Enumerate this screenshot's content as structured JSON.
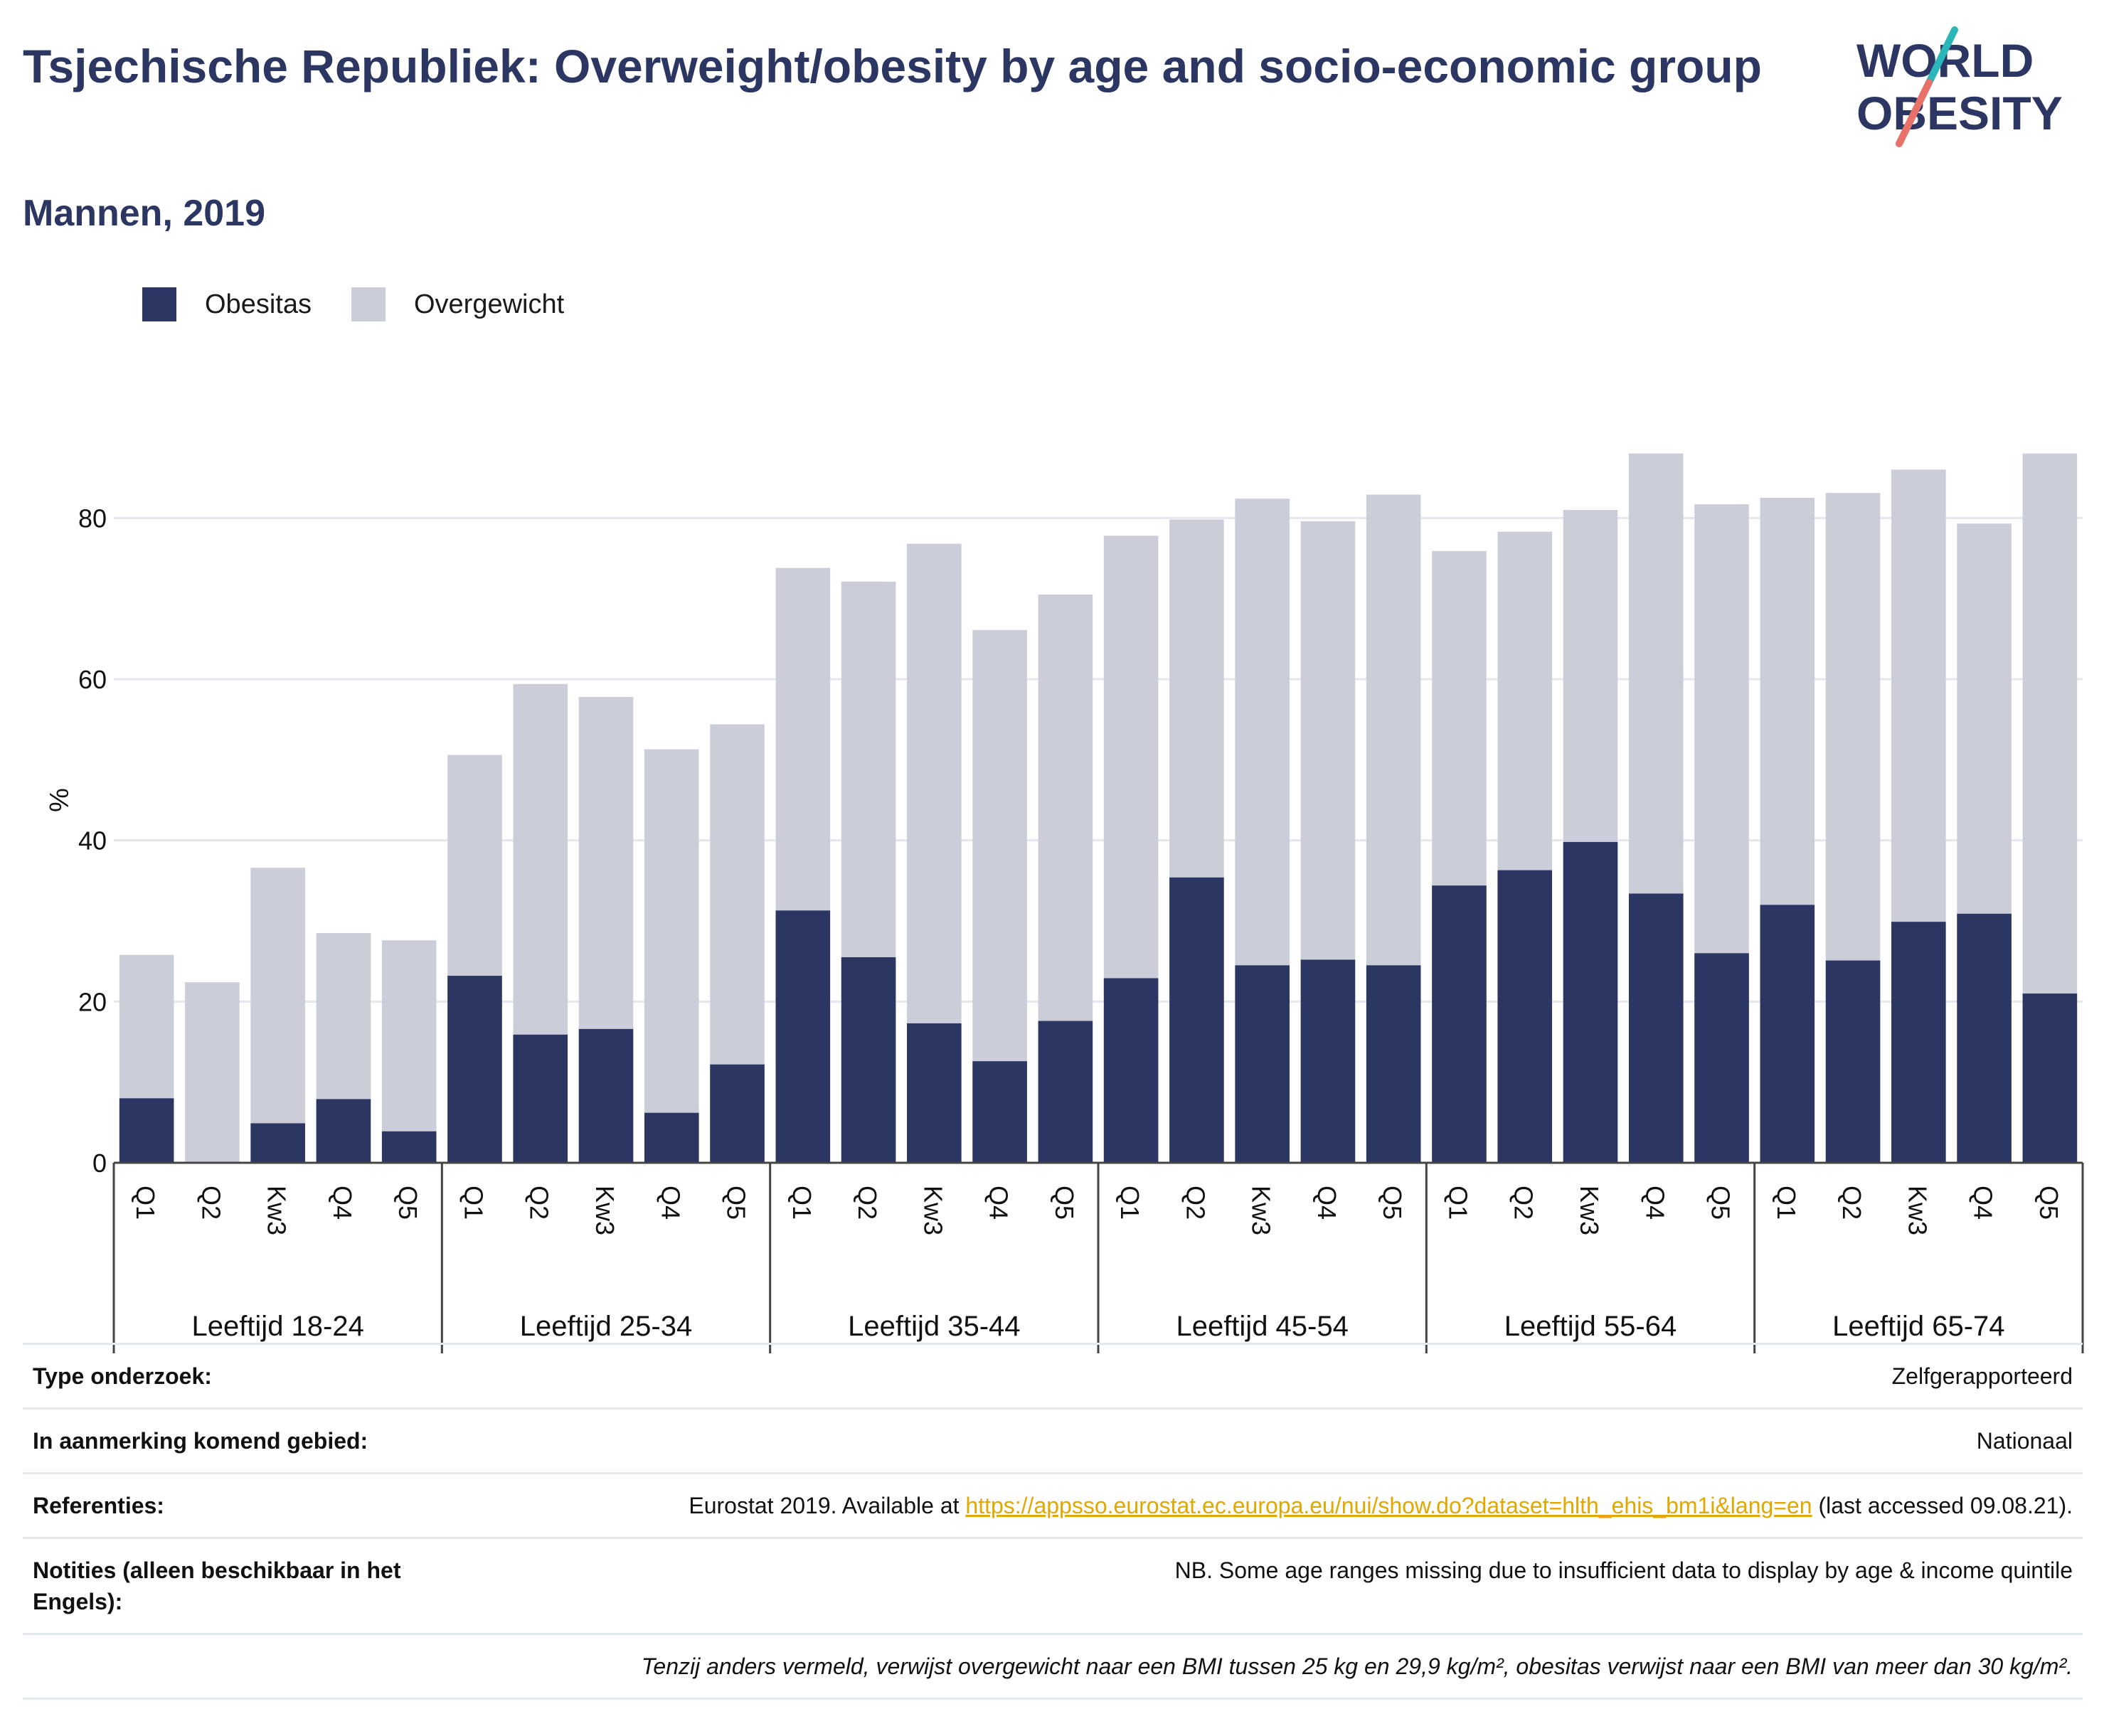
{
  "header": {
    "title": "Tsjechische Republiek: Overweight/obesity by age and socio-economic group",
    "subtitle": "Mannen, 2019"
  },
  "logo": {
    "line1": "WORLD",
    "line2": "OBESITY"
  },
  "colors": {
    "obesity": "#2b3663",
    "overweight": "#cbcdd9",
    "title": "#2b3663",
    "link": "#e0a800",
    "logo_teal": "#2bb6b9",
    "logo_coral": "#e8716a"
  },
  "legend": [
    {
      "label": "Obesitas",
      "color": "#2b3663"
    },
    {
      "label": "Overgewicht",
      "color": "#cbcdd9"
    }
  ],
  "chart_data": {
    "type": "bar",
    "stacked": true,
    "title": "",
    "xlabel": "",
    "ylabel": "%",
    "ylim": [
      0,
      90
    ],
    "yticks": [
      0,
      20,
      40,
      60,
      80
    ],
    "grid": true,
    "legend_position": "top-left",
    "groups": [
      {
        "name": "Leeftijd 18-24",
        "categories": [
          "Q1",
          "Q2",
          "Kw3",
          "Q4",
          "Q5"
        ],
        "obesity": [
          8.0,
          0.0,
          4.9,
          7.9,
          3.9
        ],
        "total": [
          25.8,
          22.4,
          36.6,
          28.5,
          27.6
        ]
      },
      {
        "name": "Leeftijd 25-34",
        "categories": [
          "Q1",
          "Q2",
          "Kw3",
          "Q4",
          "Q5"
        ],
        "obesity": [
          23.2,
          15.9,
          16.6,
          6.2,
          12.2
        ],
        "total": [
          50.6,
          59.4,
          57.8,
          51.3,
          54.4
        ]
      },
      {
        "name": "Leeftijd 35-44",
        "categories": [
          "Q1",
          "Q2",
          "Kw3",
          "Q4",
          "Q5"
        ],
        "obesity": [
          31.3,
          25.5,
          17.3,
          12.6,
          17.6
        ],
        "total": [
          73.8,
          72.1,
          76.8,
          66.1,
          70.5
        ]
      },
      {
        "name": "Leeftijd 45-54",
        "categories": [
          "Q1",
          "Q2",
          "Kw3",
          "Q4",
          "Q5"
        ],
        "obesity": [
          22.9,
          35.4,
          24.5,
          25.2,
          24.5
        ],
        "total": [
          77.8,
          79.8,
          82.4,
          79.6,
          82.9
        ]
      },
      {
        "name": "Leeftijd 55-64",
        "categories": [
          "Q1",
          "Q2",
          "Kw3",
          "Q4",
          "Q5"
        ],
        "obesity": [
          34.4,
          36.3,
          39.8,
          33.4,
          26.0
        ],
        "total": [
          75.9,
          78.3,
          81.0,
          88.0,
          81.7
        ]
      },
      {
        "name": "Leeftijd 65-74",
        "categories": [
          "Q1",
          "Q2",
          "Kw3",
          "Q4",
          "Q5"
        ],
        "obesity": [
          32.0,
          25.1,
          29.9,
          30.9,
          21.0
        ],
        "total": [
          82.5,
          83.1,
          86.0,
          79.3,
          88.0
        ]
      }
    ]
  },
  "info": {
    "survey_type": {
      "label": "Type onderzoek:",
      "value": "Zelfgerapporteerd"
    },
    "area": {
      "label": "In aanmerking komend gebied:",
      "value": "Nationaal"
    },
    "references": {
      "label": "Referenties:",
      "prefix": "Eurostat 2019. Available at ",
      "link": "https://appsso.eurostat.ec.europa.eu/nui/show.do?dataset=hlth_ehis_bm1i&lang=en",
      "suffix": " (last accessed 09.08.21)."
    },
    "notes": {
      "label": "Notities (alleen beschikbaar in het Engels):",
      "value": "NB. Some age ranges missing due to insufficient data to display by age & income quintile"
    },
    "footnote": "Tenzij anders vermeld, verwijst overgewicht naar een BMI tussen 25 kg en 29,9 kg/m², obesitas verwijst naar een BMI van meer dan 30 kg/m²."
  }
}
